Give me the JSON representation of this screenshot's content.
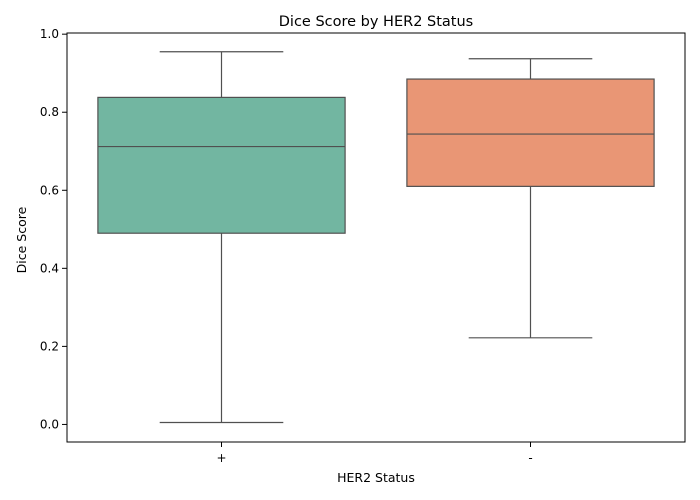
{
  "chart_data": {
    "type": "box",
    "title": "Dice Score by HER2 Status",
    "xlabel": "HER2 Status",
    "ylabel": "Dice Score",
    "ylim": [
      -0.045,
      1.003
    ],
    "yticks": [
      0.0,
      0.2,
      0.4,
      0.6,
      0.8,
      1.0
    ],
    "ytick_labels": [
      "0.0",
      "0.2",
      "0.4",
      "0.6",
      "0.8",
      "1.0"
    ],
    "grid": false,
    "categories": [
      "+",
      "-"
    ],
    "boxes": [
      {
        "category": "+",
        "whisker_low": 0.005,
        "q1": 0.49,
        "median": 0.712,
        "q3": 0.838,
        "whisker_high": 0.955,
        "color": "#72b6a1"
      },
      {
        "category": "-",
        "whisker_low": 0.222,
        "q1": 0.61,
        "median": 0.744,
        "q3": 0.885,
        "whisker_high": 0.937,
        "color": "#e99675"
      }
    ],
    "line_color": "#505050"
  }
}
